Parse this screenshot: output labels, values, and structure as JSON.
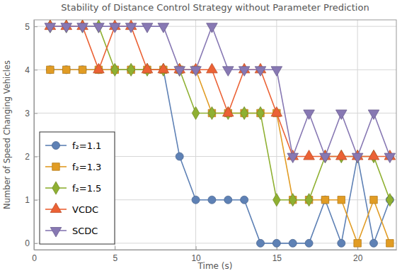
{
  "chart_data": {
    "type": "line",
    "title": "Stability of Distance Control Strategy without Parameter Prediction",
    "x_label": "Time (s)",
    "y_label": "Number of Speed Changing Vehicles",
    "x": [
      1,
      2,
      3,
      4,
      5,
      6,
      7,
      8,
      9,
      10,
      11,
      12,
      13,
      14,
      15,
      16,
      17,
      18,
      19,
      20,
      21,
      22
    ],
    "series": [
      {
        "name": "f₂=1.1",
        "color": "#5e81b5",
        "marker": "circle",
        "values": [
          4,
          4,
          4,
          4,
          4,
          4,
          4,
          4,
          2,
          1,
          1,
          1,
          1,
          0,
          0,
          0,
          0,
          1,
          0,
          2,
          0,
          1
        ]
      },
      {
        "name": "f₂=1.3",
        "color": "#e19c24",
        "marker": "square",
        "values": [
          4,
          4,
          4,
          4,
          4,
          4,
          4,
          4,
          4,
          4,
          3,
          3,
          3,
          3,
          3,
          1,
          1,
          1,
          1,
          0,
          1,
          0
        ]
      },
      {
        "name": "f₂=1.5",
        "color": "#8fb032",
        "marker": "diamond",
        "values": [
          5,
          5,
          5,
          5,
          4,
          4,
          4,
          4,
          4,
          3,
          3,
          3,
          3,
          3,
          1,
          1,
          1,
          2,
          2,
          2,
          2,
          1
        ]
      },
      {
        "name": "VCDC",
        "color": "#eb6235",
        "marker": "triangle-up",
        "values": [
          5,
          5,
          5,
          4,
          5,
          5,
          4,
          4,
          4,
          4,
          4,
          3,
          4,
          4,
          3,
          2,
          2,
          2,
          2,
          2,
          2,
          2
        ]
      },
      {
        "name": "SCDC",
        "color": "#8778b3",
        "marker": "triangle-down",
        "values": [
          5,
          5,
          5,
          5,
          5,
          5,
          5,
          5,
          4,
          4,
          5,
          4,
          4,
          4,
          4,
          2,
          3,
          2,
          3,
          2,
          3,
          2
        ]
      }
    ],
    "xlim": [
      0,
      22.4
    ],
    "xticks": [
      0,
      5,
      10,
      15,
      20
    ],
    "ylim": [
      -0.15,
      5.15
    ],
    "yticks": [
      0,
      1,
      2,
      3,
      4,
      5
    ],
    "grid": true,
    "legend": "lower left"
  }
}
